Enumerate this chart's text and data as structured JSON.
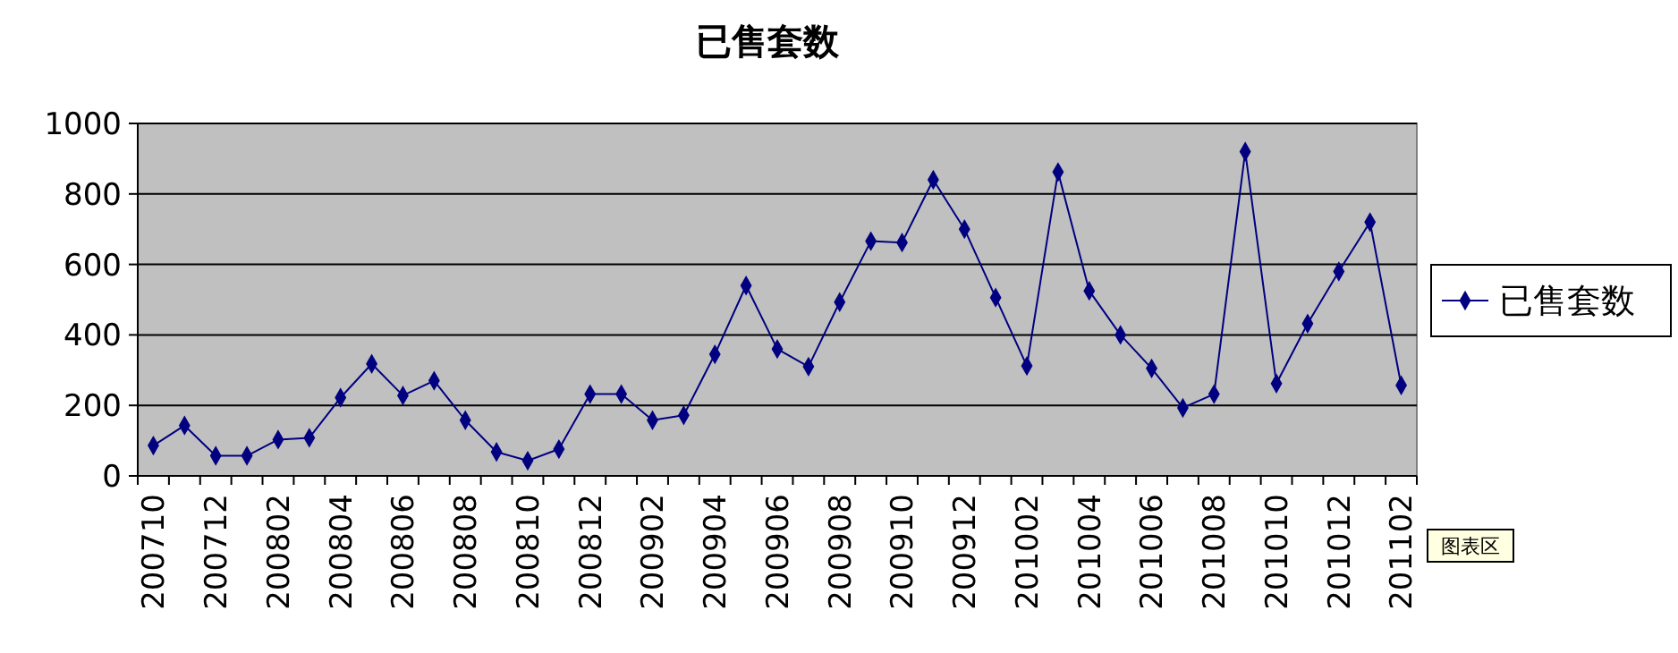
{
  "chart_data": {
    "type": "line",
    "title": "已售套数",
    "categories": [
      "200710",
      null,
      "200712",
      null,
      "200802",
      null,
      "200804",
      null,
      "200806",
      null,
      "200808",
      null,
      "200810",
      null,
      "200812",
      null,
      "200902",
      null,
      "200904",
      null,
      "200906",
      null,
      "200908",
      null,
      "200910",
      null,
      "200912",
      null,
      "201002",
      null,
      "201004",
      null,
      "201006",
      null,
      "201008",
      null,
      "201010",
      null,
      "201012",
      null,
      "201102"
    ],
    "series": [
      {
        "name": "已售套数",
        "color": "#000080",
        "values": [
          86,
          143,
          57,
          57,
          103,
          108,
          222,
          318,
          228,
          270,
          158,
          68,
          43,
          76,
          232,
          232,
          158,
          172,
          345,
          540,
          360,
          310,
          493,
          666,
          662,
          840,
          700,
          506,
          312,
          862,
          525,
          400,
          305,
          193,
          232,
          920,
          262,
          432,
          580,
          720,
          257
        ]
      }
    ],
    "ylim": [
      0,
      1000
    ],
    "yticks": [
      0,
      200,
      400,
      600,
      800,
      1000
    ],
    "grid": "y",
    "legend": "right",
    "marker": "diamond",
    "line_style": "solid",
    "annotations": [
      "图表区"
    ]
  }
}
